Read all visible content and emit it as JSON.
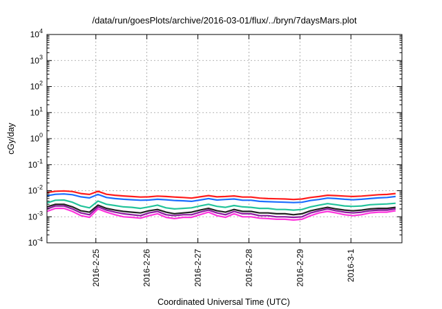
{
  "chart_data": {
    "type": "line",
    "title": "/data/run/goesPlots/archive/2016-03-01/flux/../bryn/7daysMars.plot",
    "xlabel": "Coordinated Universal Time (UTC)",
    "ylabel": "cGy/day",
    "yscale": "log",
    "ylim": [
      0.0001,
      10000
    ],
    "y_ticks": [
      {
        "base": "10",
        "exp": "4",
        "value": 10000
      },
      {
        "base": "10",
        "exp": "3",
        "value": 1000
      },
      {
        "base": "10",
        "exp": "2",
        "value": 100
      },
      {
        "base": "10",
        "exp": "1",
        "value": 10
      },
      {
        "base": "10",
        "exp": "0",
        "value": 1
      },
      {
        "base": "10",
        "exp": "-1",
        "value": 0.1
      },
      {
        "base": "10",
        "exp": "-2",
        "value": 0.01
      },
      {
        "base": "10",
        "exp": "-3",
        "value": 0.001
      },
      {
        "base": "10",
        "exp": "-4",
        "value": 0.0001
      }
    ],
    "xlim": [
      "2016-02-24T01:00",
      "2016-03-02T00:00"
    ],
    "x_ticks": [
      {
        "label": "2016-2-25",
        "value": "2016-02-25T00:00"
      },
      {
        "label": "2016-2-26",
        "value": "2016-02-26T00:00"
      },
      {
        "label": "2016-2-27",
        "value": "2016-02-27T00:00"
      },
      {
        "label": "2016-2-28",
        "value": "2016-02-28T00:00"
      },
      {
        "label": "2016-2-29",
        "value": "2016-02-29T00:00"
      },
      {
        "label": "2016-3-1",
        "value": "2016-03-01T00:00"
      }
    ],
    "grid": true,
    "x": [
      "2016-02-24T01:00",
      "2016-02-24T05:00",
      "2016-02-24T09:00",
      "2016-02-24T13:00",
      "2016-02-24T17:00",
      "2016-02-24T21:00",
      "2016-02-25T01:00",
      "2016-02-25T05:00",
      "2016-02-25T09:00",
      "2016-02-25T13:00",
      "2016-02-25T17:00",
      "2016-02-25T21:00",
      "2016-02-26T01:00",
      "2016-02-26T05:00",
      "2016-02-26T09:00",
      "2016-02-26T13:00",
      "2016-02-26T17:00",
      "2016-02-26T21:00",
      "2016-02-27T01:00",
      "2016-02-27T05:00",
      "2016-02-27T09:00",
      "2016-02-27T13:00",
      "2016-02-27T17:00",
      "2016-02-27T21:00",
      "2016-02-28T01:00",
      "2016-02-28T05:00",
      "2016-02-28T09:00",
      "2016-02-28T13:00",
      "2016-02-28T17:00",
      "2016-02-28T21:00",
      "2016-02-29T01:00",
      "2016-02-29T05:00",
      "2016-02-29T09:00",
      "2016-02-29T13:00",
      "2016-02-29T17:00",
      "2016-02-29T21:00",
      "2016-03-01T01:00",
      "2016-03-01T05:00",
      "2016-03-01T09:00",
      "2016-03-01T13:00",
      "2016-03-01T17:00",
      "2016-03-01T21:00"
    ],
    "series": [
      {
        "color": "#ff1a1a",
        "values": [
          0.0085,
          0.0095,
          0.0098,
          0.0093,
          0.0078,
          0.0072,
          0.0095,
          0.0073,
          0.0067,
          0.0063,
          0.006,
          0.0057,
          0.0058,
          0.0062,
          0.006,
          0.0057,
          0.0055,
          0.0052,
          0.0058,
          0.0065,
          0.0058,
          0.006,
          0.0063,
          0.0057,
          0.0057,
          0.0052,
          0.005,
          0.0049,
          0.0048,
          0.0046,
          0.0048,
          0.0055,
          0.006,
          0.0067,
          0.0065,
          0.0062,
          0.006,
          0.0062,
          0.0066,
          0.007,
          0.0072,
          0.0078
        ]
      },
      {
        "color": "#1a6dff",
        "values": [
          0.0064,
          0.0073,
          0.0075,
          0.007,
          0.0058,
          0.0053,
          0.0072,
          0.0055,
          0.005,
          0.0047,
          0.0045,
          0.0043,
          0.0044,
          0.0047,
          0.0045,
          0.0042,
          0.0041,
          0.0039,
          0.0044,
          0.005,
          0.0044,
          0.0046,
          0.0048,
          0.0043,
          0.0043,
          0.0039,
          0.0038,
          0.0037,
          0.0036,
          0.0035,
          0.0036,
          0.0042,
          0.0046,
          0.0052,
          0.005,
          0.0047,
          0.0045,
          0.0047,
          0.005,
          0.0053,
          0.0055,
          0.006
        ]
      },
      {
        "color": "#22c39a",
        "values": [
          0.0034,
          0.0043,
          0.0044,
          0.0036,
          0.0026,
          0.0022,
          0.004,
          0.003,
          0.0027,
          0.0024,
          0.0023,
          0.0021,
          0.0024,
          0.0028,
          0.0022,
          0.002,
          0.0021,
          0.0022,
          0.0026,
          0.003,
          0.0025,
          0.0023,
          0.0027,
          0.0024,
          0.0023,
          0.0021,
          0.0021,
          0.0019,
          0.0019,
          0.0018,
          0.0019,
          0.0024,
          0.0028,
          0.0032,
          0.0029,
          0.0026,
          0.0025,
          0.0026,
          0.0029,
          0.003,
          0.0031,
          0.0033
        ]
      },
      {
        "color": "#222222",
        "values": [
          0.0024,
          0.003,
          0.003,
          0.0024,
          0.0017,
          0.0015,
          0.0028,
          0.0021,
          0.0018,
          0.0016,
          0.0015,
          0.0014,
          0.0017,
          0.0019,
          0.0015,
          0.0013,
          0.0014,
          0.0015,
          0.0018,
          0.0021,
          0.0017,
          0.0015,
          0.0019,
          0.0016,
          0.0016,
          0.0014,
          0.0014,
          0.0013,
          0.0013,
          0.0012,
          0.0013,
          0.0017,
          0.002,
          0.0023,
          0.002,
          0.0018,
          0.0017,
          0.0018,
          0.002,
          0.0021,
          0.0021,
          0.0023
        ]
      },
      {
        "color": "#8a1a9e",
        "values": [
          0.002,
          0.0026,
          0.0026,
          0.002,
          0.0014,
          0.0012,
          0.0024,
          0.0018,
          0.0015,
          0.0013,
          0.0012,
          0.0011,
          0.0014,
          0.0016,
          0.0012,
          0.0011,
          0.0012,
          0.0012,
          0.0015,
          0.0018,
          0.0014,
          0.0012,
          0.0016,
          0.0013,
          0.0013,
          0.0011,
          0.0011,
          0.001,
          0.001,
          0.00095,
          0.001,
          0.0014,
          0.0017,
          0.002,
          0.0017,
          0.0015,
          0.0014,
          0.0015,
          0.0017,
          0.0018,
          0.0018,
          0.002
        ]
      },
      {
        "color": "#ff33dd",
        "values": [
          0.0016,
          0.0021,
          0.0021,
          0.0016,
          0.0011,
          0.00095,
          0.002,
          0.0015,
          0.0012,
          0.001,
          0.00095,
          0.00088,
          0.0011,
          0.0013,
          0.00095,
          0.00085,
          0.00095,
          0.00095,
          0.0012,
          0.0015,
          0.0011,
          0.00095,
          0.0013,
          0.001,
          0.001,
          0.00088,
          0.00085,
          0.0008,
          0.0008,
          0.00075,
          0.0008,
          0.0011,
          0.0014,
          0.0016,
          0.0014,
          0.0012,
          0.0011,
          0.0012,
          0.0014,
          0.0015,
          0.0015,
          0.0017
        ]
      }
    ]
  }
}
